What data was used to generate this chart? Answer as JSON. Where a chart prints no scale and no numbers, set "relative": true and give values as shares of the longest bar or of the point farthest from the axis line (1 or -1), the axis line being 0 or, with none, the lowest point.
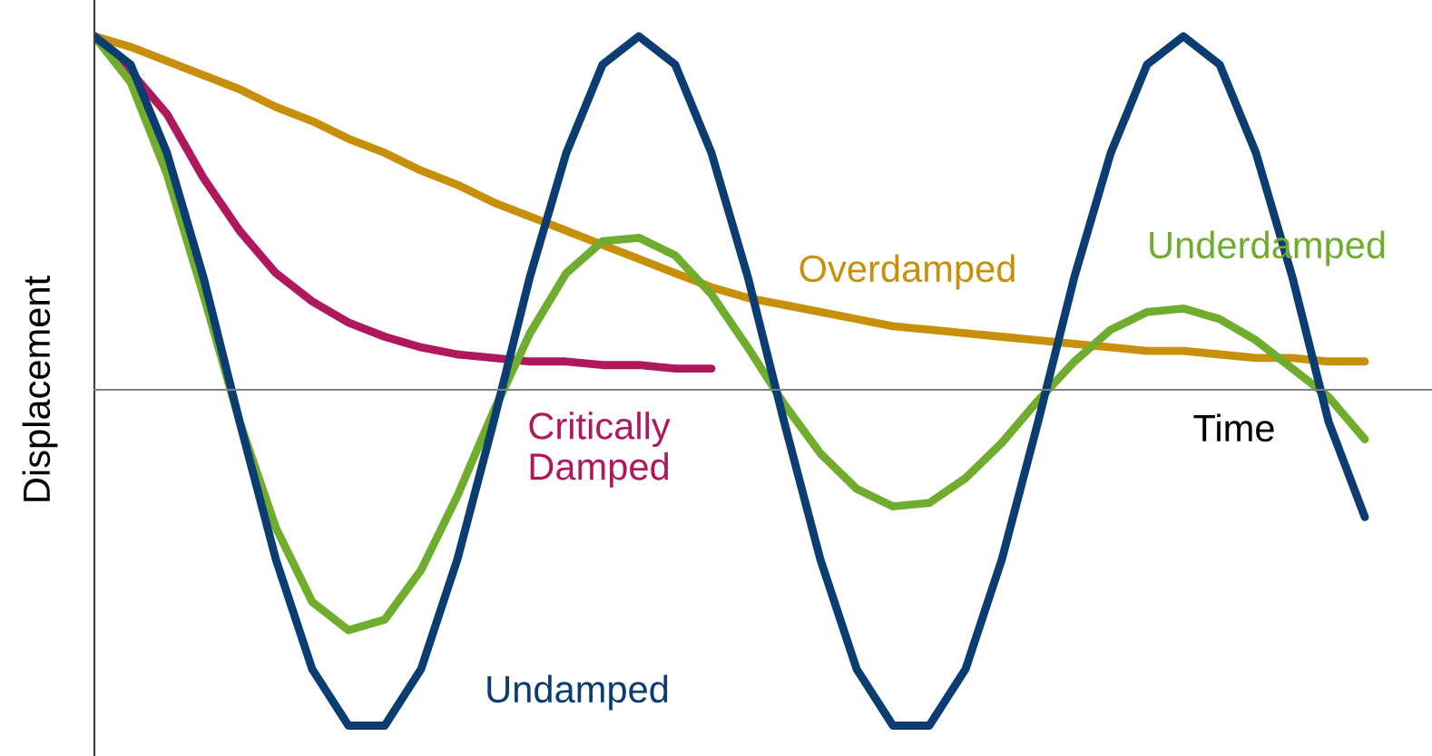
{
  "chart_data": {
    "type": "line",
    "relative": true,
    "xlabel": "Time",
    "ylabel": "Displacement",
    "marker": "none",
    "line_style": "solid",
    "categories": [
      null,
      null,
      null,
      null,
      null,
      null,
      null,
      null,
      null,
      null,
      null,
      null,
      null,
      null,
      null,
      null,
      null,
      null,
      null,
      null,
      null,
      null,
      null,
      null,
      null,
      null,
      null,
      null,
      null,
      null,
      null,
      null,
      null,
      null,
      null,
      null
    ],
    "series": [
      {
        "name": "Critically\nDamped",
        "color": "#b0185e",
        "values": [
          1.0,
          0.9,
          0.78,
          0.6,
          0.45,
          0.33,
          0.25,
          0.19,
          0.15,
          0.12,
          0.1,
          0.09,
          0.08,
          0.08,
          0.07,
          0.07,
          0.06,
          0.06,
          null,
          null,
          null,
          null,
          null,
          null,
          null,
          null,
          null,
          null,
          null,
          null,
          null,
          null,
          null,
          null,
          null,
          null
        ]
      },
      {
        "name": "Overdamped",
        "color": "#c8900a",
        "values": [
          1.0,
          0.97,
          0.93,
          0.89,
          0.85,
          0.8,
          0.76,
          0.71,
          0.67,
          0.62,
          0.58,
          0.53,
          0.49,
          0.45,
          0.41,
          0.37,
          0.33,
          0.29,
          0.26,
          0.24,
          0.22,
          0.2,
          0.18,
          0.17,
          0.16,
          0.15,
          0.14,
          0.13,
          0.12,
          0.11,
          0.11,
          0.1,
          0.09,
          0.09,
          0.08,
          0.08
        ]
      },
      {
        "name": "Underdamped",
        "color": "#70ad2f",
        "values": [
          1.0,
          0.87,
          0.61,
          0.27,
          -0.09,
          -0.39,
          -0.6,
          -0.68,
          -0.65,
          -0.51,
          -0.3,
          -0.06,
          0.16,
          0.33,
          0.42,
          0.43,
          0.38,
          0.27,
          0.12,
          -0.04,
          -0.18,
          -0.28,
          -0.33,
          -0.32,
          -0.25,
          -0.15,
          -0.03,
          0.08,
          0.17,
          0.22,
          0.23,
          0.2,
          0.14,
          0.06,
          -0.02,
          -0.14
        ]
      },
      {
        "name": "Undamped",
        "color": "#0b3d73",
        "values": [
          1.0,
          0.92,
          0.67,
          0.32,
          -0.09,
          -0.48,
          -0.79,
          -0.95,
          -0.95,
          -0.79,
          -0.48,
          -0.09,
          0.32,
          0.67,
          0.92,
          1.0,
          0.92,
          0.67,
          0.32,
          -0.09,
          -0.48,
          -0.79,
          -0.95,
          -0.95,
          -0.79,
          -0.48,
          -0.09,
          0.32,
          0.67,
          0.92,
          1.0,
          0.92,
          0.67,
          0.32,
          -0.09,
          -0.36
        ]
      }
    ]
  }
}
